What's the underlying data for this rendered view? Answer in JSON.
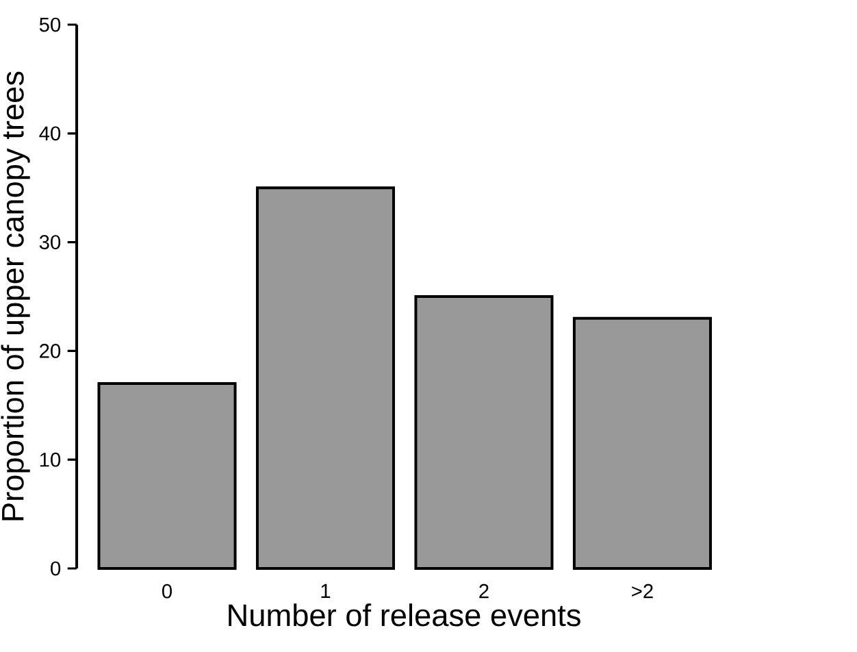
{
  "chart_data": {
    "type": "bar",
    "xlabel": "Number of release events",
    "ylabel": "Proportion of upper canopy trees",
    "categories": [
      "0",
      "1",
      "2",
      ">2"
    ],
    "values": [
      17,
      35,
      25,
      23
    ],
    "color": "#999999",
    "ylim": [
      0,
      50
    ],
    "yticks": [
      0,
      10,
      20,
      30,
      40,
      50
    ],
    "grid": false
  }
}
